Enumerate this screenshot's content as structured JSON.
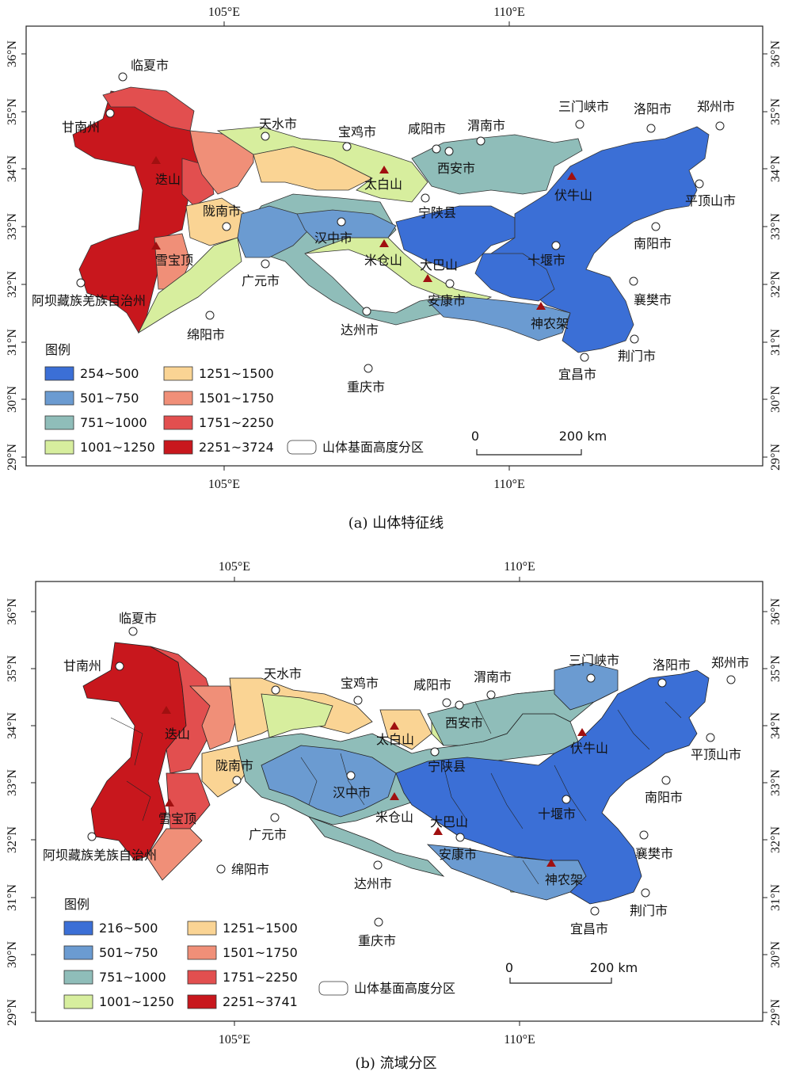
{
  "panels": [
    {
      "caption": "(a) 山体特征线",
      "legend": {
        "title": "图例",
        "classes": [
          {
            "label": "254~500",
            "color": "#3b6fd6"
          },
          {
            "label": "501~750",
            "color": "#6b9bd1"
          },
          {
            "label": "751~1000",
            "color": "#8fbdb9"
          },
          {
            "label": "1001~1250",
            "color": "#d7ee9e"
          },
          {
            "label": "1251~1500",
            "color": "#fad494"
          },
          {
            "label": "1501~1750",
            "color": "#f08f78"
          },
          {
            "label": "1751~2250",
            "color": "#e24f4f"
          },
          {
            "label": "2251~3724",
            "color": "#c8171d"
          }
        ],
        "zone_label": "山体基面高度分区"
      },
      "scale_bar": {
        "start": "0",
        "end": "200 km"
      }
    },
    {
      "caption": "(b) 流域分区",
      "legend": {
        "title": "图例",
        "classes": [
          {
            "label": "216~500",
            "color": "#3b6fd6"
          },
          {
            "label": "501~750",
            "color": "#6b9bd1"
          },
          {
            "label": "751~1000",
            "color": "#8fbdb9"
          },
          {
            "label": "1001~1250",
            "color": "#d7ee9e"
          },
          {
            "label": "1251~1500",
            "color": "#fad494"
          },
          {
            "label": "1501~1750",
            "color": "#f08f78"
          },
          {
            "label": "1751~2250",
            "color": "#e24f4f"
          },
          {
            "label": "2251~3741",
            "color": "#c8171d"
          }
        ],
        "zone_label": "山体基面高度分区"
      },
      "scale_bar": {
        "start": "0",
        "end": "200 km"
      }
    }
  ],
  "axes": {
    "lon_labels": [
      "105°E",
      "110°E"
    ],
    "lat_labels": [
      "36°N",
      "35°N",
      "34°N",
      "33°N",
      "32°N",
      "31°N",
      "30°N",
      "29°N"
    ]
  },
  "cities": [
    "临夏市",
    "甘南州",
    "天水市",
    "宝鸡市",
    "咸阳市",
    "渭南市",
    "三门峡市",
    "洛阳市",
    "郑州市",
    "西安市",
    "平顶山市",
    "陇南市",
    "汉中市",
    "宁陕县",
    "南阳市",
    "广元市",
    "十堰市",
    "襄樊市",
    "阿坝藏族羌族自治州",
    "安康市",
    "绵阳市",
    "达州市",
    "荆门市",
    "宜昌市",
    "重庆市"
  ],
  "peaks": [
    "迭山",
    "雪宝顶",
    "太白山",
    "米仓山",
    "大巴山",
    "伏牛山",
    "神农架"
  ]
}
